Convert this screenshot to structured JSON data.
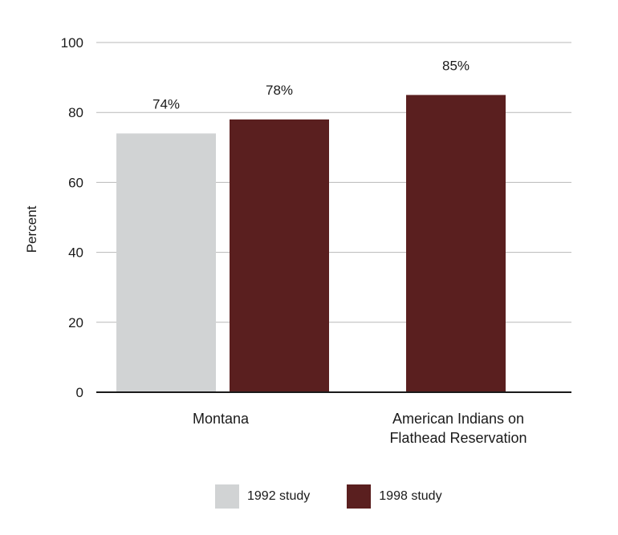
{
  "chart_data": {
    "type": "bar",
    "categories": [
      [
        "Montana"
      ],
      [
        "American Indians on",
        "Flathead Reservation"
      ]
    ],
    "series": [
      {
        "name": "1992 study",
        "color": "#d1d3d4",
        "values": [
          74,
          null
        ],
        "labels": [
          "74%",
          null
        ]
      },
      {
        "name": "1998 study",
        "color": "#5a1f1f",
        "values": [
          78,
          85
        ],
        "labels": [
          "78%",
          "85%"
        ]
      }
    ],
    "ylabel": "Percent",
    "ylim": [
      0,
      100
    ],
    "yticks": [
      0,
      20,
      40,
      60,
      80,
      100
    ],
    "grid": true,
    "legend_position": "bottom"
  }
}
